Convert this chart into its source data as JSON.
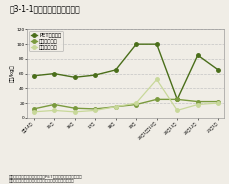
{
  "title": "図3-1-1　循環資源価格の推移",
  "ylabel": "（円/kg）",
  "ylim": [
    0,
    120
  ],
  "yticks": [
    0,
    20,
    40,
    60,
    80,
    100,
    120
  ],
  "x_labels": [
    "平成14年",
    "15年",
    "16年",
    "17年",
    "18年",
    "19年",
    "20年1月〜10月",
    "20年11月",
    "20年12月",
    "21年1月"
  ],
  "series": [
    {
      "name": "PETフレーク",
      "color": "#4a6e1a",
      "marker": "o",
      "linewidth": 1.0,
      "markersize": 2.5,
      "values": [
        57,
        60,
        55,
        58,
        65,
        100,
        100,
        25,
        85,
        65
      ]
    },
    {
      "name": "古紙（色上）",
      "color": "#7a9a3e",
      "marker": "o",
      "linewidth": 1.0,
      "markersize": 2.5,
      "values": [
        12,
        18,
        13,
        12,
        15,
        18,
        25,
        25,
        22,
        22
      ]
    },
    {
      "name": "鉄スクラップ",
      "color": "#c8d89a",
      "marker": "o",
      "linewidth": 0.9,
      "markersize": 2.5,
      "values": [
        8,
        10,
        8,
        10,
        15,
        20,
        52,
        10,
        18,
        20
      ]
    }
  ],
  "background_color": "#f0ede6",
  "plot_bg_color": "#f0ede6",
  "grid_color": "#c0c0c0",
  "title_fontsize": 5.5,
  "legend_fontsize": 3.8,
  "tick_fontsize": 3.2,
  "ylabel_fontsize": 3.8,
  "footer": "資料：（社）日本鉄源協会、廃PETボトル再商品化協議会、\n　　（財）古紙再生促進センターデータより環境省作成",
  "footer_fontsize": 3.2
}
